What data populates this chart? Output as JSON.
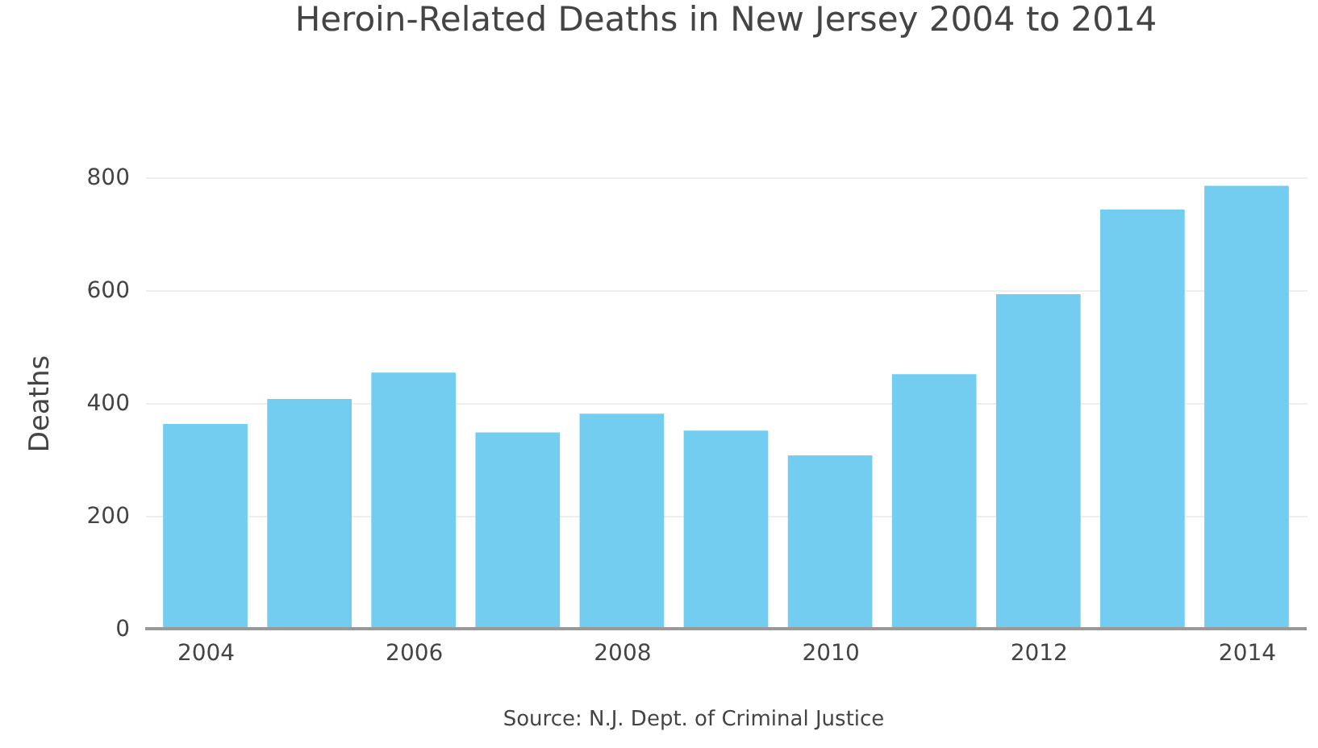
{
  "chart_data": {
    "type": "bar",
    "title": "Heroin-Related Deaths in New Jersey 2004 to 2014",
    "ylabel": "Deaths",
    "x": [
      2004,
      2005,
      2006,
      2007,
      2008,
      2009,
      2010,
      2011,
      2012,
      2013,
      2014
    ],
    "values": [
      363,
      407,
      454,
      348,
      381,
      351,
      307,
      451,
      593,
      743,
      785
    ],
    "color": "#73cdf0",
    "xlim": [
      2003.5,
      2014.5
    ],
    "xticks": [
      2004,
      2006,
      2008,
      2010,
      2012,
      2014
    ],
    "ylim": [
      0,
      800
    ],
    "yticks": [
      0,
      200,
      400,
      600,
      800
    ],
    "grid": "y",
    "annotations": [
      "Source: N.J. Dept. of Criminal Justice"
    ]
  }
}
